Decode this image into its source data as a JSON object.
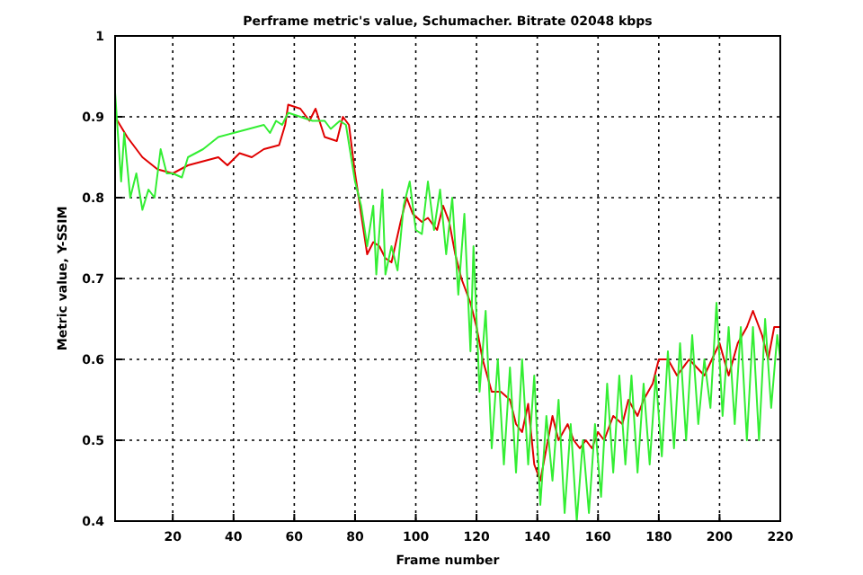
{
  "chart_data": {
    "type": "line",
    "title": "Perframe metric's value, Schumacher. Bitrate 02048 kbps",
    "xlabel": "Frame number",
    "ylabel": "Metric value, Y-SSIM",
    "xlim": [
      1,
      220
    ],
    "xticks": [
      20,
      40,
      60,
      80,
      100,
      120,
      140,
      160,
      180,
      200,
      220
    ],
    "ylim": [
      0.4,
      1
    ],
    "yticks": [
      0.4,
      0.5,
      0.6,
      0.7,
      0.8,
      0.9,
      1
    ],
    "grid": true,
    "line_style": "solid",
    "marker": "none",
    "series": [
      {
        "color": "#e00000",
        "x": [
          1,
          5,
          10,
          15,
          20,
          25,
          30,
          35,
          38,
          42,
          46,
          50,
          55,
          57,
          58,
          62,
          65,
          67,
          70,
          74,
          76,
          78,
          80,
          82,
          84,
          86,
          88,
          90,
          92,
          95,
          97,
          99,
          102,
          104,
          107,
          109,
          111,
          113,
          115,
          118,
          120,
          122,
          125,
          128,
          131,
          133,
          135,
          137,
          139,
          141,
          143,
          145,
          147,
          150,
          152,
          154,
          156,
          158,
          160,
          162,
          165,
          168,
          170,
          173,
          175,
          178,
          180,
          183,
          186,
          190,
          195,
          200,
          203,
          206,
          209,
          211,
          214,
          216,
          218,
          220
        ],
        "values": [
          0.9,
          0.875,
          0.85,
          0.835,
          0.83,
          0.84,
          0.845,
          0.85,
          0.84,
          0.855,
          0.85,
          0.86,
          0.865,
          0.89,
          0.915,
          0.91,
          0.895,
          0.91,
          0.875,
          0.87,
          0.9,
          0.89,
          0.83,
          0.78,
          0.73,
          0.745,
          0.74,
          0.725,
          0.72,
          0.77,
          0.8,
          0.78,
          0.77,
          0.775,
          0.76,
          0.79,
          0.77,
          0.73,
          0.7,
          0.67,
          0.64,
          0.6,
          0.56,
          0.56,
          0.55,
          0.52,
          0.51,
          0.545,
          0.47,
          0.45,
          0.49,
          0.53,
          0.5,
          0.52,
          0.5,
          0.49,
          0.5,
          0.49,
          0.51,
          0.5,
          0.53,
          0.52,
          0.55,
          0.53,
          0.55,
          0.57,
          0.6,
          0.6,
          0.58,
          0.6,
          0.58,
          0.62,
          0.58,
          0.62,
          0.64,
          0.66,
          0.63,
          0.6,
          0.64,
          0.64
        ]
      },
      {
        "color": "#33ee33",
        "x": [
          1,
          3,
          4,
          6,
          8,
          10,
          12,
          14,
          16,
          18,
          20,
          23,
          25,
          30,
          35,
          40,
          45,
          50,
          52,
          54,
          56,
          58,
          62,
          66,
          70,
          72,
          75,
          77,
          80,
          82,
          84,
          86,
          87,
          89,
          90,
          92,
          94,
          96,
          98,
          100,
          102,
          104,
          106,
          108,
          110,
          112,
          114,
          116,
          118,
          119,
          121,
          123,
          125,
          127,
          129,
          131,
          133,
          135,
          137,
          139,
          141,
          143,
          145,
          147,
          149,
          151,
          153,
          155,
          157,
          159,
          161,
          163,
          165,
          167,
          169,
          171,
          173,
          175,
          177,
          179,
          181,
          183,
          185,
          187,
          189,
          191,
          193,
          195,
          197,
          199,
          201,
          203,
          205,
          207,
          209,
          211,
          213,
          215,
          217,
          219,
          220
        ],
        "values": [
          0.93,
          0.82,
          0.88,
          0.8,
          0.83,
          0.785,
          0.81,
          0.8,
          0.86,
          0.83,
          0.83,
          0.825,
          0.85,
          0.86,
          0.875,
          0.88,
          0.885,
          0.89,
          0.88,
          0.895,
          0.89,
          0.905,
          0.9,
          0.895,
          0.895,
          0.885,
          0.895,
          0.89,
          0.82,
          0.79,
          0.74,
          0.79,
          0.705,
          0.81,
          0.705,
          0.74,
          0.71,
          0.79,
          0.82,
          0.76,
          0.755,
          0.82,
          0.76,
          0.81,
          0.73,
          0.8,
          0.68,
          0.78,
          0.61,
          0.74,
          0.56,
          0.66,
          0.49,
          0.6,
          0.47,
          0.59,
          0.46,
          0.6,
          0.47,
          0.58,
          0.42,
          0.53,
          0.45,
          0.55,
          0.41,
          0.52,
          0.4,
          0.5,
          0.41,
          0.52,
          0.43,
          0.57,
          0.46,
          0.58,
          0.47,
          0.58,
          0.46,
          0.57,
          0.47,
          0.58,
          0.48,
          0.61,
          0.49,
          0.62,
          0.5,
          0.63,
          0.52,
          0.6,
          0.54,
          0.67,
          0.53,
          0.64,
          0.52,
          0.64,
          0.5,
          0.64,
          0.5,
          0.65,
          0.54,
          0.63,
          0.6
        ]
      }
    ]
  }
}
